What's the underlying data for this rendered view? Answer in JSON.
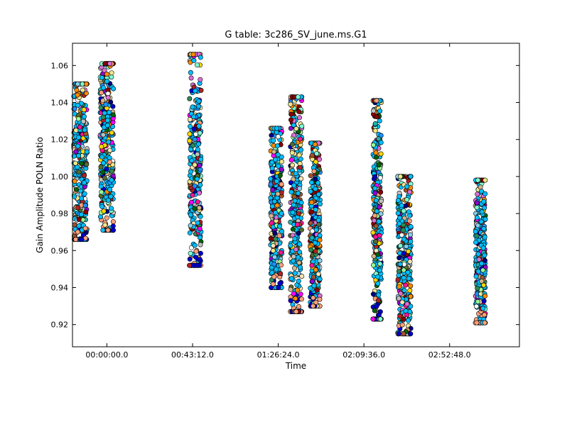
{
  "chart_data": {
    "type": "scatter",
    "title": "G table: 3c286_SV_june.ms.G1",
    "xlabel": "Time",
    "ylabel": "Gain Amplitude POLN Ratio",
    "x_axis_unit": "seconds",
    "xlim": [
      -1040,
      12480
    ],
    "ylim": [
      0.908,
      1.072
    ],
    "x_ticks": [
      {
        "value": 0,
        "label": "00:00:00.0"
      },
      {
        "value": 2592,
        "label": "00:43:12.0"
      },
      {
        "value": 5184,
        "label": "01:26:24.0"
      },
      {
        "value": 7776,
        "label": "02:09:36.0"
      },
      {
        "value": 10368,
        "label": "02:52:48.0"
      }
    ],
    "y_ticks": [
      {
        "value": 0.92,
        "label": "0.92"
      },
      {
        "value": 0.94,
        "label": "0.94"
      },
      {
        "value": 0.96,
        "label": "0.96"
      },
      {
        "value": 0.98,
        "label": "0.98"
      },
      {
        "value": 1.0,
        "label": "1.00"
      },
      {
        "value": 1.02,
        "label": "1.02"
      },
      {
        "value": 1.04,
        "label": "1.04"
      },
      {
        "value": 1.06,
        "label": "1.06"
      }
    ],
    "grid": false,
    "legend": "none",
    "marker_colors": [
      "#00bfff",
      "#1e90ff",
      "#000080",
      "#0000cd",
      "#ffa07a",
      "#a0522d",
      "#ff8c00",
      "#ffd700",
      "#f0e68c",
      "#7fffd4",
      "#20b2aa",
      "#2e8b57",
      "#556b2f",
      "#006400",
      "#ff1493",
      "#ff00ff",
      "#9400d3",
      "#da70d6",
      "#ffffff",
      "#c0c0c0",
      "#d2b48c",
      "#8b0000",
      "#b22222",
      "#98fb98",
      "#87ceeb",
      "#ffe4b5"
    ],
    "scans": [
      {
        "time_min": -1000,
        "time_max": -600,
        "y_min": 0.966,
        "y_max": 1.05
      },
      {
        "time_min": -200,
        "time_max": 200,
        "y_min": 0.971,
        "y_max": 1.061
      },
      {
        "time_min": 2500,
        "time_max": 2850,
        "y_min": 0.952,
        "y_max": 1.066
      },
      {
        "time_min": 4950,
        "time_max": 5300,
        "y_min": 0.94,
        "y_max": 1.026
      },
      {
        "time_min": 5550,
        "time_max": 5900,
        "y_min": 0.927,
        "y_max": 1.043
      },
      {
        "time_min": 6150,
        "time_max": 6450,
        "y_min": 0.93,
        "y_max": 1.018
      },
      {
        "time_min": 8050,
        "time_max": 8300,
        "y_min": 0.923,
        "y_max": 1.041
      },
      {
        "time_min": 8800,
        "time_max": 9200,
        "y_min": 0.915,
        "y_max": 1.0
      },
      {
        "time_min": 11150,
        "time_max": 11450,
        "y_min": 0.921,
        "y_max": 0.998
      }
    ]
  }
}
